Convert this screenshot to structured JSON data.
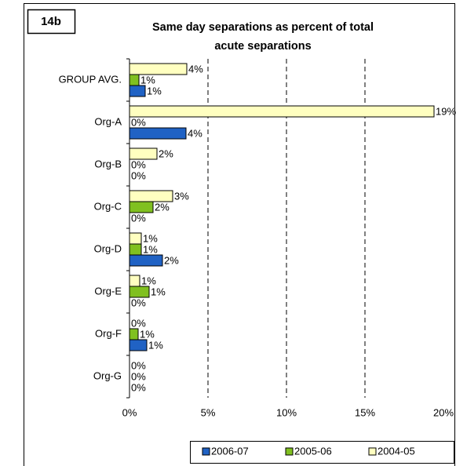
{
  "chart_data": {
    "type": "hbar",
    "panel_label": "14b",
    "title": [
      "Same day separations as percent of total",
      "acute separations"
    ],
    "categories": [
      "GROUP AVG.",
      "Org-A",
      "Org-B",
      "Org-C",
      "Org-D",
      "Org-E",
      "Org-F",
      "Org-G"
    ],
    "series": [
      {
        "name": "2006-07",
        "color": "#2062c4",
        "values": [
          1.0,
          3.6,
          0,
          0,
          2.1,
          0,
          1.1,
          0
        ],
        "value_labels": [
          "1%",
          "4%",
          "0%",
          "0%",
          "2%",
          "0%",
          "1%",
          "0%"
        ]
      },
      {
        "name": "2005-06",
        "color": "#80c020",
        "values": [
          0.6,
          0,
          0,
          1.5,
          0.75,
          1.25,
          0.55,
          0
        ],
        "value_labels": [
          "1%",
          "0%",
          "0%",
          "2%",
          "1%",
          "1%",
          "1%",
          "0%"
        ]
      },
      {
        "name": "2004-05",
        "color": "#ffffc0",
        "values": [
          3.65,
          19.4,
          1.75,
          2.75,
          0.75,
          0.65,
          0,
          0
        ],
        "value_labels": [
          "4%",
          "19%",
          "2%",
          "3%",
          "1%",
          "1%",
          "0%",
          "0%"
        ]
      }
    ],
    "xlim": [
      0,
      20
    ],
    "xticks": [
      {
        "value": 0,
        "label": "0%"
      },
      {
        "value": 5,
        "label": "5%"
      },
      {
        "value": 10,
        "label": "10%"
      },
      {
        "value": 15,
        "label": "15%"
      },
      {
        "value": 20,
        "label": "20%"
      }
    ],
    "grid": true
  }
}
